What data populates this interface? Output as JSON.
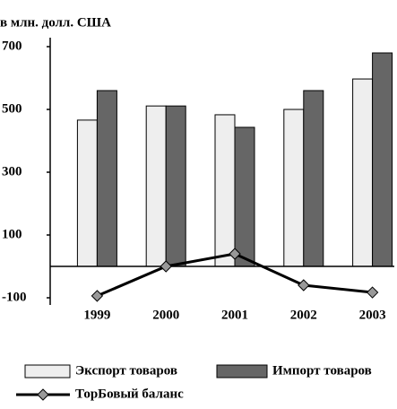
{
  "chart_data": {
    "type": "bar",
    "y_axis_label": "в млн. долл. США",
    "categories": [
      "1999",
      "2000",
      "2001",
      "2002",
      "2003"
    ],
    "series": [
      {
        "name": "Экспорт товаров",
        "type": "bar",
        "color": "#eeeeee",
        "values": [
          466,
          511,
          483,
          500,
          597
        ]
      },
      {
        "name": "Импорт товаров",
        "type": "bar",
        "color": "#666666",
        "values": [
          560,
          511,
          443,
          560,
          680
        ]
      },
      {
        "name": "ТорБовый баланс",
        "type": "line",
        "color": "#000000",
        "values": [
          -94,
          0,
          40,
          -60,
          -83
        ]
      }
    ],
    "ylim": [
      -100,
      700
    ],
    "yticks": [
      -100,
      100,
      300,
      500,
      700
    ]
  }
}
